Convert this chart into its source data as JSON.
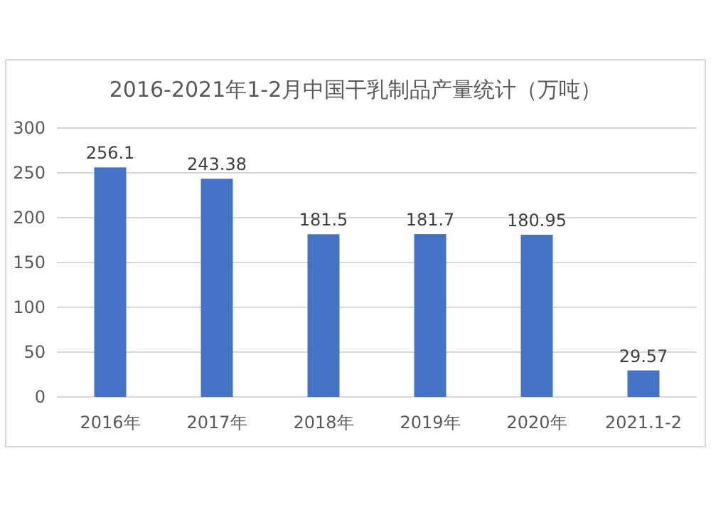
{
  "chart_data": {
    "type": "bar",
    "title": "2016-2021年1-2月中国干乳制品产量统计（万吨）",
    "categories": [
      "2016年",
      "2017年",
      "2018年",
      "2019年",
      "2020年",
      "2021.1-2"
    ],
    "values": [
      256.1,
      243.38,
      181.5,
      181.7,
      180.95,
      29.57
    ],
    "color": "#4472c4",
    "ylim": [
      0,
      300
    ],
    "yticks": [
      0,
      50,
      100,
      150,
      200,
      250,
      300
    ],
    "grid": "y",
    "data_labels": true
  }
}
